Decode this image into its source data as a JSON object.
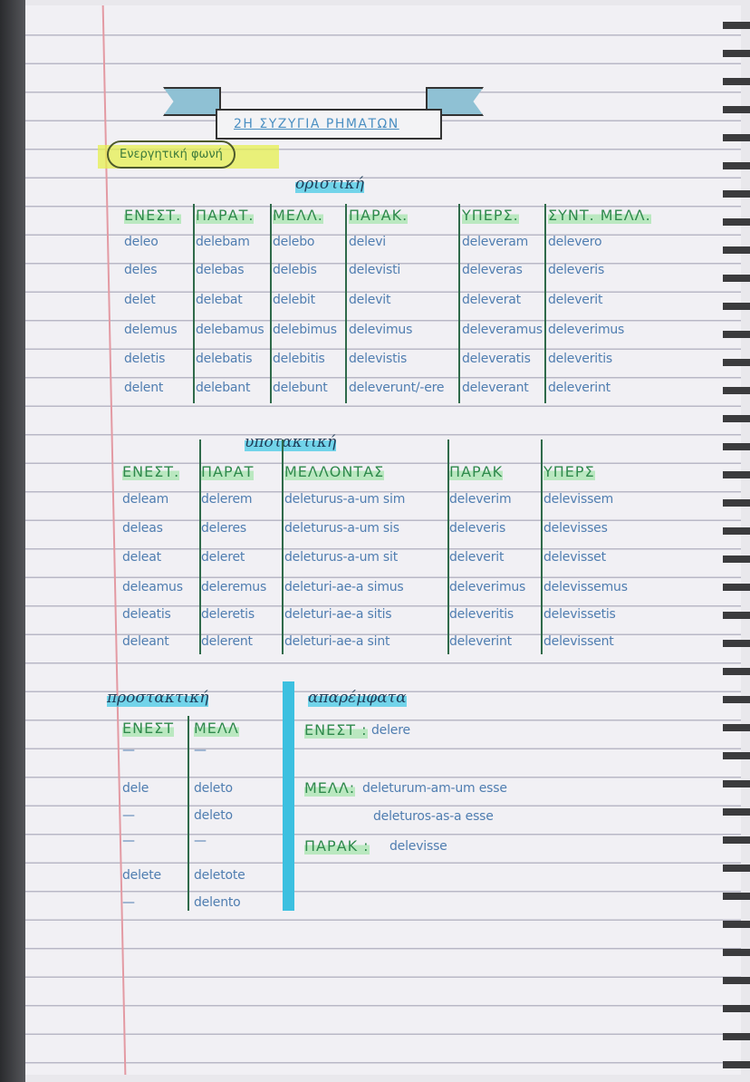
{
  "title": "2Η ΣΥΖΥΓΙΑ ΡΗΜΑΤΩΝ",
  "voice": "Ενεργητική φωνή",
  "indicative": {
    "heading": "οριστική",
    "headers": [
      "ΕΝΕΣΤ.",
      "ΠΑΡΑΤ.",
      "ΜΕΛΛ.",
      "ΠΑΡΑΚ.",
      "ΥΠΕΡΣ.",
      "ΣΥΝΤ. ΜΕΛΛ."
    ],
    "rows": [
      [
        "deleo",
        "delebam",
        "delebo",
        "delevi",
        "deleveram",
        "delevero"
      ],
      [
        "deles",
        "delebas",
        "delebis",
        "delevisti",
        "deleveras",
        "deleveris"
      ],
      [
        "delet",
        "delebat",
        "delebit",
        "delevit",
        "deleverat",
        "deleverit"
      ],
      [
        "delemus",
        "delebamus",
        "delebimus",
        "delevimus",
        "deleveramus",
        "deleverimus"
      ],
      [
        "deletis",
        "delebatis",
        "delebitis",
        "delevistis",
        "deleveratis",
        "deleveritis"
      ],
      [
        "delent",
        "delebant",
        "delebunt",
        "deleverunt/-ere",
        "deleverant",
        "deleverint"
      ]
    ]
  },
  "subjunctive": {
    "heading": "υποτακτική",
    "headers": [
      "ΕΝΕΣΤ.",
      "ΠΑΡΑΤ",
      "ΜΕΛΛΟΝΤΑΣ",
      "ΠΑΡΑΚ",
      "ΥΠΕΡΣ"
    ],
    "rows": [
      [
        "deleam",
        "delerem",
        "deleturus-a-um sim",
        "deleverim",
        "delevissem"
      ],
      [
        "deleas",
        "deleres",
        "deleturus-a-um sis",
        "deleveris",
        "delevisses"
      ],
      [
        "deleat",
        "deleret",
        "deleturus-a-um sit",
        "deleverit",
        "delevisset"
      ],
      [
        "deleamus",
        "deleremus",
        "deleturi-ae-a simus",
        "deleverimus",
        "delevissemus"
      ],
      [
        "deleatis",
        "deleretis",
        "deleturi-ae-a sitis",
        "deleveritis",
        "delevissetis"
      ],
      [
        "deleant",
        "delerent",
        "deleturi-ae-a sint",
        "deleverint",
        "delevissent"
      ]
    ]
  },
  "imperative": {
    "heading": "προστακτική",
    "headers": [
      "ΕΝΕΣΤ",
      "ΜΕΛΛ"
    ],
    "rows": [
      [
        "—",
        "—"
      ],
      [
        "dele",
        "deleto"
      ],
      [
        "—",
        "deleto"
      ],
      [
        "—",
        "—"
      ],
      [
        "delete",
        "deletote"
      ],
      [
        "—",
        "delento"
      ]
    ]
  },
  "infinitives": {
    "heading": "απαρέμφατα",
    "items": [
      {
        "label": "ΕΝΕΣΤ :",
        "value": "delere"
      },
      {
        "label": "ΜΕΛΛ:",
        "value": "deleturum-am-um esse",
        "value2": "deleturos-as-a esse"
      },
      {
        "label": "ΠΑΡΑΚ :",
        "value": "delevisse"
      }
    ]
  }
}
